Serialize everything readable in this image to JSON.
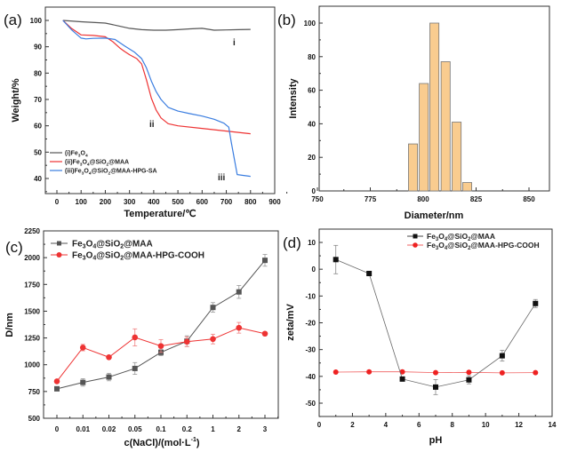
{
  "chart_data": [
    {
      "panel": "(a)",
      "type": "line",
      "xlabel": "Temperature/℃",
      "ylabel": "Weight/%",
      "xlim": [
        -40,
        900
      ],
      "ylim": [
        35,
        105
      ],
      "xticks": [
        0,
        100,
        200,
        300,
        400,
        500,
        600,
        700,
        800,
        900
      ],
      "yticks": [
        40,
        50,
        60,
        70,
        80,
        90,
        100
      ],
      "legend_position": "bottom-left",
      "series": [
        {
          "name": "(i)Fe3O4",
          "label_main": "(i)Fe",
          "color": "#555555",
          "annotation": "i",
          "x": [
            25,
            100,
            200,
            250,
            300,
            350,
            400,
            450,
            500,
            550,
            600,
            650,
            700,
            750,
            800
          ],
          "y": [
            100,
            99.5,
            99.0,
            98.0,
            97.0,
            96.5,
            96.3,
            96.3,
            96.5,
            96.8,
            97.0,
            96.3,
            96.4,
            96.5,
            96.6
          ]
        },
        {
          "name": "(ii)Fe3O4@SiO2@MAA",
          "color": "#ee3333",
          "annotation": "ii",
          "x": [
            25,
            60,
            100,
            150,
            200,
            230,
            260,
            280,
            300,
            330,
            350,
            370,
            390,
            410,
            430,
            460,
            500,
            600,
            700,
            800
          ],
          "y": [
            100,
            97,
            94.5,
            94.3,
            93.8,
            92.0,
            89.5,
            88.2,
            87.0,
            85.5,
            83.5,
            77.5,
            70.5,
            66.0,
            63.0,
            60.8,
            60.0,
            59.0,
            58.0,
            57.0
          ]
        },
        {
          "name": "(iii)Fe3O4@SiO2@MAA-HPG-SA",
          "color": "#3a7de0",
          "annotation": "iii",
          "x": [
            25,
            60,
            100,
            120,
            150,
            200,
            240,
            280,
            320,
            350,
            370,
            390,
            410,
            430,
            460,
            500,
            550,
            600,
            650,
            690,
            710,
            720,
            745,
            800
          ],
          "y": [
            100,
            96.5,
            93.3,
            93.0,
            93.2,
            93.3,
            92.8,
            90.3,
            88.0,
            85.5,
            82.0,
            77.0,
            73.0,
            70.0,
            67.0,
            65.6,
            64.6,
            63.7,
            62.5,
            61.0,
            59.5,
            54.0,
            41.5,
            40.8
          ]
        }
      ]
    },
    {
      "panel": "(b)",
      "type": "bar",
      "xlabel": "Diameter/nm",
      "ylabel": "Intensity",
      "xlim": [
        750,
        860
      ],
      "ylim": [
        0,
        110
      ],
      "xticks": [
        750,
        775,
        800,
        825,
        850
      ],
      "yticks": [
        0,
        20,
        40,
        60,
        80,
        100
      ],
      "bar_color": "#f9cc8f",
      "bar_edge": "#777777",
      "bin_width": 4.7,
      "x": [
        795.4,
        800.5,
        805.5,
        810.8,
        816.0,
        821.0
      ],
      "values": [
        28,
        64,
        100,
        77,
        41,
        5
      ]
    },
    {
      "panel": "(c)",
      "type": "line",
      "xlabel": "c(NaCl)/(mol·L⁻¹)",
      "xlabel_main": "c(NaCl)/(mol·L",
      "xlabel_sup": "-1",
      "xlabel_end": ")",
      "ylabel": "D/nm",
      "ylim": [
        500,
        2250
      ],
      "yticks": [
        500,
        750,
        1000,
        1250,
        1500,
        1750,
        2000,
        2250
      ],
      "categories": [
        "0",
        "0.01",
        "0.02",
        "0.05",
        "0.1",
        "0.2",
        "1",
        "2",
        "3"
      ],
      "legend_position": "top-left",
      "series": [
        {
          "name": "Fe3O4@SiO2@MAA",
          "color": "#555555",
          "marker": "square",
          "values": [
            775,
            835,
            885,
            965,
            1115,
            1220,
            1535,
            1680,
            1975
          ],
          "errors": [
            15,
            35,
            35,
            55,
            30,
            50,
            45,
            60,
            55
          ]
        },
        {
          "name": "Fe3O4@SiO2@MAA-HPG-COOH",
          "color": "#ee3333",
          "marker": "circle",
          "values": [
            845,
            1160,
            1070,
            1255,
            1175,
            1215,
            1240,
            1345,
            1290
          ],
          "errors": [
            12,
            30,
            15,
            80,
            60,
            45,
            45,
            50,
            15
          ]
        }
      ]
    },
    {
      "panel": "(d)",
      "type": "line",
      "xlabel": "pH",
      "ylabel": "zeta/mV",
      "xlim": [
        0,
        14
      ],
      "ylim": [
        -55,
        15
      ],
      "xticks": [
        0,
        2,
        4,
        6,
        8,
        10,
        12,
        14
      ],
      "yticks": [
        -50,
        -40,
        -30,
        -20,
        -10,
        0,
        10
      ],
      "legend_position": "top-right",
      "series": [
        {
          "name": "Fe3O4@SiO2@MAA",
          "color": "#111111",
          "marker": "square",
          "x": [
            1,
            3,
            5,
            7,
            9,
            11,
            13
          ],
          "values": [
            3.6,
            -1.6,
            -41.0,
            -44.0,
            -41.3,
            -32.3,
            -12.8
          ],
          "errors": [
            5.3,
            0.3,
            0.5,
            2.8,
            1.5,
            2.0,
            1.5
          ]
        },
        {
          "name": "Fe3O4@SiO2@MAA-HPG-COOH",
          "color": "#ee2222",
          "marker": "circle",
          "x": [
            1,
            3,
            5,
            7,
            9,
            11,
            13
          ],
          "values": [
            -38.4,
            -38.3,
            -38.3,
            -38.6,
            -38.5,
            -38.7,
            -38.6
          ],
          "errors": [
            0,
            0,
            0,
            0,
            0,
            0,
            0
          ]
        }
      ]
    }
  ],
  "labels": {
    "a": "(a)",
    "b": "(b)",
    "c": "(c)",
    "d": "(d)",
    "ann_i": "i",
    "ann_ii": "ii",
    "ann_iii": "iii",
    "legend_a": [
      {
        "pre": "(i)Fe",
        "s1": "3",
        "m1": "O",
        "s2": "4",
        "rest": ""
      },
      {
        "pre": "(ii)Fe",
        "s1": "3",
        "m1": "O",
        "s2": "4",
        "rest": "@SiO",
        "s3": "2",
        "end": "@MAA"
      },
      {
        "pre": "(iii)Fe",
        "s1": "3",
        "m1": "O",
        "s2": "4",
        "rest": "@SiO",
        "s3": "2",
        "end": "@MAA-HPG-SA"
      }
    ],
    "legend_cd": [
      {
        "pre": "Fe",
        "s1": "3",
        "m1": "O",
        "s2": "4",
        "rest": "@SiO",
        "s3": "2",
        "end": "@MAA"
      },
      {
        "pre": "Fe",
        "s1": "3",
        "m1": "O",
        "s2": "4",
        "rest": "@SiO",
        "s3": "2",
        "end": "@MAA-HPG-COOH"
      }
    ]
  }
}
